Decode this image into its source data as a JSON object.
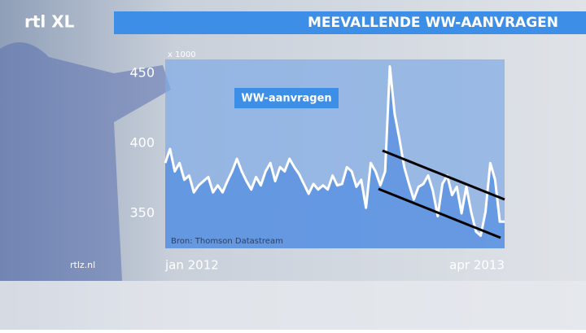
{
  "logo": "rtl XL",
  "site": "rtlz.nl",
  "chart_data": {
    "type": "line",
    "title": "MEEVALLENDE WW-AANVRAGEN",
    "y_unit": "x 1000",
    "source": "Bron: Thomson Datastream",
    "categories": [
      "jan 2012",
      null,
      null,
      null,
      null,
      null,
      null,
      null,
      null,
      null,
      null,
      null,
      null,
      null,
      null,
      null,
      null,
      null,
      null,
      null,
      null,
      null,
      null,
      null,
      null,
      null,
      null,
      null,
      null,
      null,
      null,
      null,
      null,
      null,
      null,
      null,
      null,
      null,
      null,
      null,
      null,
      null,
      null,
      null,
      null,
      null,
      null,
      null,
      null,
      null,
      null,
      null,
      null,
      null,
      null,
      null,
      null,
      null,
      null,
      null,
      null,
      null,
      null,
      null,
      null,
      null,
      null,
      null,
      null,
      null,
      null,
      "apr 2013"
    ],
    "series": [
      {
        "name": "WW-aanvragen",
        "color": "#ffffff",
        "values": [
          386,
          396,
          380,
          386,
          374,
          377,
          365,
          370,
          373,
          376,
          365,
          370,
          365,
          373,
          380,
          389,
          380,
          373,
          367,
          376,
          370,
          380,
          386,
          373,
          383,
          380,
          389,
          383,
          378,
          371,
          364,
          371,
          367,
          370,
          367,
          377,
          370,
          371,
          383,
          380,
          369,
          374,
          354,
          386,
          380,
          370,
          380,
          455,
          421,
          403,
          383,
          371,
          360,
          369,
          371,
          377,
          366,
          348,
          371,
          377,
          363,
          369,
          350,
          369,
          351,
          337,
          334,
          351,
          386,
          374,
          344,
          344
        ]
      }
    ],
    "ylim": [
      325,
      460
    ],
    "yticks": [
      350,
      400,
      450
    ],
    "grid": false
  }
}
